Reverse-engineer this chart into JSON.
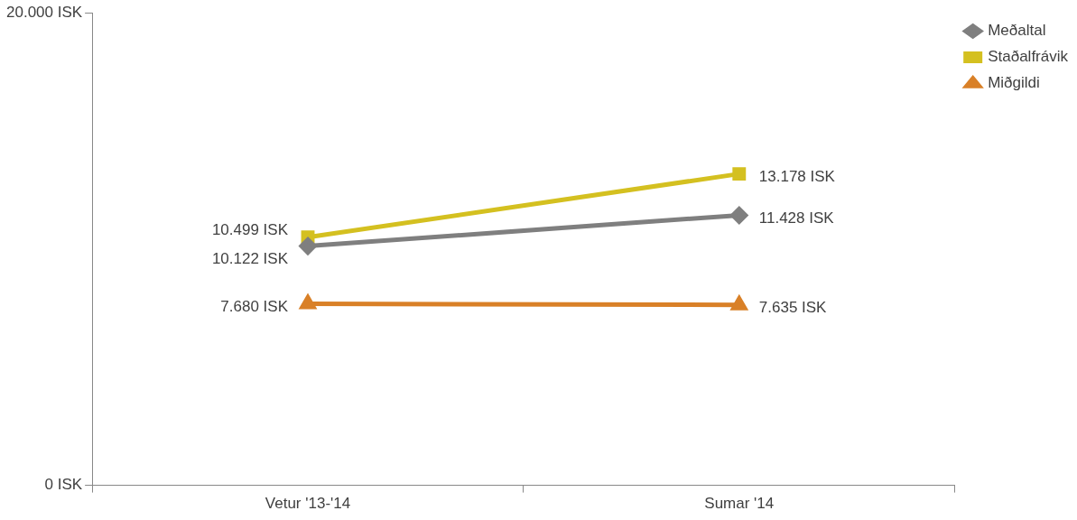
{
  "chart_data": {
    "type": "line",
    "categories": [
      "Vetur '13-'14",
      "Sumar '14"
    ],
    "series": [
      {
        "name": "Meðaltal",
        "color": "#7f7f7f",
        "marker": "diamond",
        "values": [
          10122,
          11428
        ],
        "value_labels": [
          "10.122 ISK",
          "11.428 ISK"
        ]
      },
      {
        "name": "Staðalfrávik",
        "color": "#d4c020",
        "marker": "square",
        "values": [
          10499,
          13178
        ],
        "value_labels": [
          "10.499 ISK",
          "13.178 ISK"
        ]
      },
      {
        "name": "Miðgildi",
        "color": "#d98027",
        "marker": "triangle",
        "values": [
          7680,
          7635
        ],
        "value_labels": [
          "7.680 ISK",
          "7.635 ISK"
        ]
      }
    ],
    "ylim": [
      0,
      20000
    ],
    "yticks": [
      {
        "value": 0,
        "label": "0 ISK"
      },
      {
        "value": 20000,
        "label": "20.000 ISK"
      }
    ],
    "grid": false,
    "legend": "top right",
    "line_style": "solid"
  }
}
